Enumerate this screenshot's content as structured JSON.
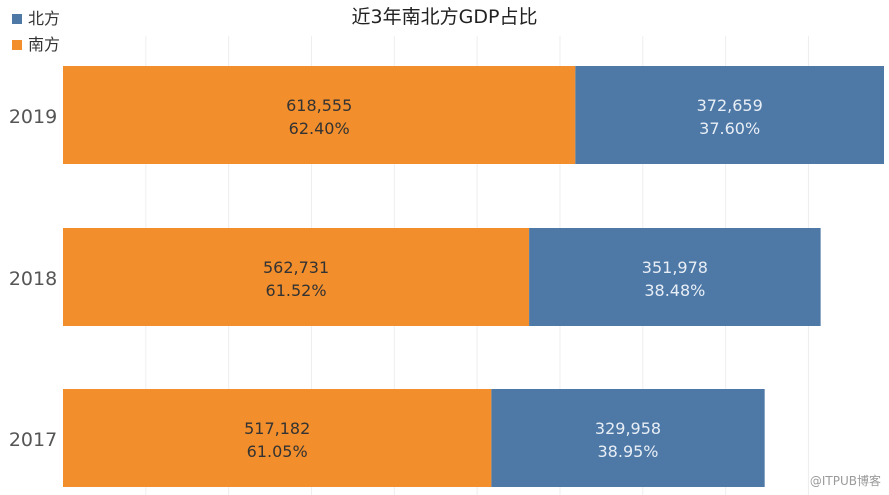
{
  "chart_data": {
    "type": "bar",
    "orientation": "horizontal",
    "stacked": true,
    "title": "近3年南北方GDP占比",
    "categories": [
      "2019",
      "2018",
      "2017"
    ],
    "series": [
      {
        "name": "南方",
        "color": "#f28e2b",
        "values": [
          618555,
          562731,
          517182
        ],
        "value_labels": [
          "618,555",
          "562,731",
          "517,182"
        ],
        "pct_labels": [
          "62.40%",
          "61.52%",
          "61.05%"
        ]
      },
      {
        "name": "北方",
        "color": "#4e79a7",
        "values": [
          372659,
          351978,
          329958
        ],
        "value_labels": [
          "372,659",
          "351,978",
          "329,958"
        ],
        "pct_labels": [
          "37.60%",
          "38.48%",
          "38.95%"
        ]
      }
    ],
    "legend_position": "top-left",
    "grid": "vertical",
    "xlim": [
      0,
      1000000
    ]
  },
  "legend": {
    "items": [
      {
        "label": "北方",
        "color": "#4e79a7"
      },
      {
        "label": "南方",
        "color": "#f28e2b"
      }
    ]
  },
  "watermark": "@ITPUB博客"
}
